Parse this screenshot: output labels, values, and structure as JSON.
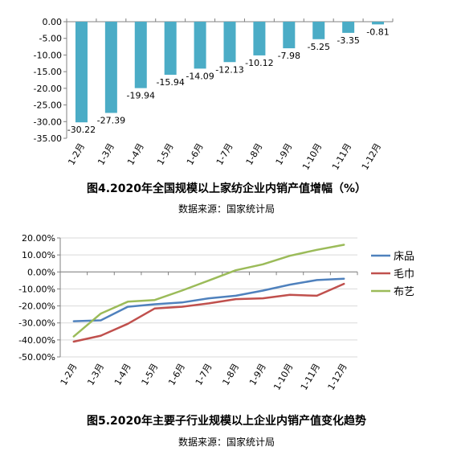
{
  "chart_data": [
    {
      "type": "bar",
      "categories": [
        "1-2月",
        "1-3月",
        "1-4月",
        "1-5月",
        "1-6月",
        "1-7月",
        "1-8月",
        "1-9月",
        "1-10月",
        "1-11月",
        "1-12月"
      ],
      "values": [
        -30.22,
        -27.39,
        -19.94,
        -15.94,
        -14.09,
        -12.13,
        -10.12,
        -7.98,
        -5.25,
        -3.35,
        -0.81
      ],
      "value_labels": [
        "-30.22",
        "-27.39",
        "-19.94",
        "-15.94",
        "-14.09",
        "-12.13",
        "-10.12",
        "-7.98",
        "-5.25",
        "-3.35",
        "-0.81"
      ],
      "yticks": [
        "0.00",
        "-5.00",
        "-10.00",
        "-15.00",
        "-20.00",
        "-25.00",
        "-30.00",
        "-35.00"
      ],
      "ylim": [
        -35,
        0
      ],
      "bar_color": "#4BACC6",
      "title": "图4.2020年全国规模以上家纺企业内销产值增幅（%）",
      "source": "数据来源：国家统计局"
    },
    {
      "type": "line",
      "categories": [
        "1-2月",
        "1-3月",
        "1-4月",
        "1-5月",
        "1-6月",
        "1-7月",
        "1-8月",
        "1-9月",
        "1-10月",
        "1-11月",
        "1-12月"
      ],
      "series": [
        {
          "name": "床品",
          "color": "#4F81BD",
          "values": [
            -29,
            -28.5,
            -20.5,
            -19,
            -18,
            -15.5,
            -14,
            -11,
            -7.5,
            -4.8,
            -4
          ]
        },
        {
          "name": "毛巾",
          "color": "#C0504D",
          "values": [
            -41,
            -37.5,
            -30.5,
            -21.5,
            -20.5,
            -18.5,
            -16,
            -15.5,
            -13.5,
            -14,
            -7
          ]
        },
        {
          "name": "布艺",
          "color": "#9BBB59",
          "values": [
            -38,
            -24.5,
            -17.5,
            -16.5,
            -11,
            -5,
            1,
            4.5,
            9.5,
            13,
            16
          ]
        }
      ],
      "yticks": [
        "20.00%",
        "10.00%",
        "0.00%",
        "-10.00%",
        "-20.00%",
        "-30.00%",
        "-40.00%",
        "-50.00%"
      ],
      "ylim": [
        -50,
        20
      ],
      "grid": true,
      "legend": "right",
      "title": "图5.2020年主要子行业规模以上企业内销产值变化趋势",
      "source": "数据来源：国家统计局"
    }
  ]
}
